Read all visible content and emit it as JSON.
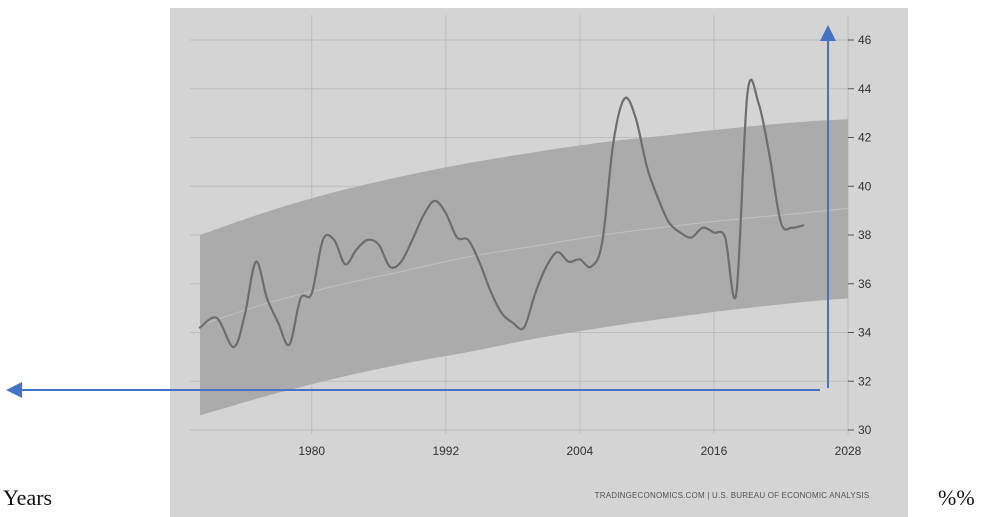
{
  "chart_data": {
    "type": "line",
    "title": "",
    "xlabel": "Years",
    "ylabel": "%%",
    "source": "TRADINGECONOMICS.COM | U.S. BUREAU OF ECONOMIC ANALYSIS",
    "xlim": [
      1970,
      2028
    ],
    "ylim": [
      30,
      46
    ],
    "x_ticks": [
      1980,
      1992,
      2004,
      2016,
      2028
    ],
    "y_ticks": [
      30,
      32,
      34,
      36,
      38,
      40,
      42,
      44,
      46
    ],
    "grid": true,
    "band": {
      "x": [
        1970,
        1976,
        1982,
        1988,
        1994,
        2000,
        2006,
        2012,
        2018,
        2024,
        2028
      ],
      "upper": [
        38.0,
        38.95,
        39.75,
        40.4,
        40.95,
        41.4,
        41.8,
        42.1,
        42.4,
        42.65,
        42.75
      ],
      "lower": [
        30.6,
        31.4,
        32.1,
        32.7,
        33.2,
        33.75,
        34.2,
        34.6,
        34.95,
        35.25,
        35.4
      ]
    },
    "trend": {
      "x": [
        1970,
        1976,
        1982,
        1988,
        1994,
        2000,
        2006,
        2012,
        2018,
        2024,
        2028
      ],
      "y": [
        34.3,
        35.2,
        35.9,
        36.5,
        37.1,
        37.55,
        38.0,
        38.35,
        38.65,
        38.9,
        39.1
      ]
    },
    "series": [
      {
        "name": "",
        "x": [
          1970,
          1971.5,
          1973,
          1974,
          1975,
          1976,
          1977,
          1978,
          1979,
          1980,
          1981,
          1982,
          1983,
          1984,
          1985,
          1986,
          1987,
          1988,
          1989,
          1990,
          1991,
          1992,
          1993,
          1994,
          1995,
          1996,
          1997,
          1998,
          1999,
          2000,
          2001,
          2002,
          2003,
          2004,
          2005,
          2006,
          2007,
          2008,
          2009,
          2010,
          2011,
          2012,
          2013,
          2014,
          2015,
          2016,
          2017,
          2018,
          2019,
          2020,
          2021,
          2022,
          2023,
          2024
        ],
        "y": [
          34.2,
          34.6,
          33.4,
          34.7,
          36.9,
          35.4,
          34.4,
          33.5,
          35.4,
          35.6,
          37.8,
          37.8,
          36.8,
          37.4,
          37.8,
          37.6,
          36.7,
          36.9,
          37.8,
          38.8,
          39.4,
          38.9,
          37.9,
          37.8,
          36.9,
          35.7,
          34.8,
          34.4,
          34.2,
          35.6,
          36.7,
          37.3,
          36.9,
          37.0,
          36.7,
          37.7,
          41.8,
          43.6,
          42.8,
          40.8,
          39.5,
          38.5,
          38.1,
          37.9,
          38.3,
          38.1,
          37.9,
          35.6,
          43.8,
          43.4,
          41.2,
          38.5,
          38.3,
          38.4
        ]
      }
    ]
  }
}
